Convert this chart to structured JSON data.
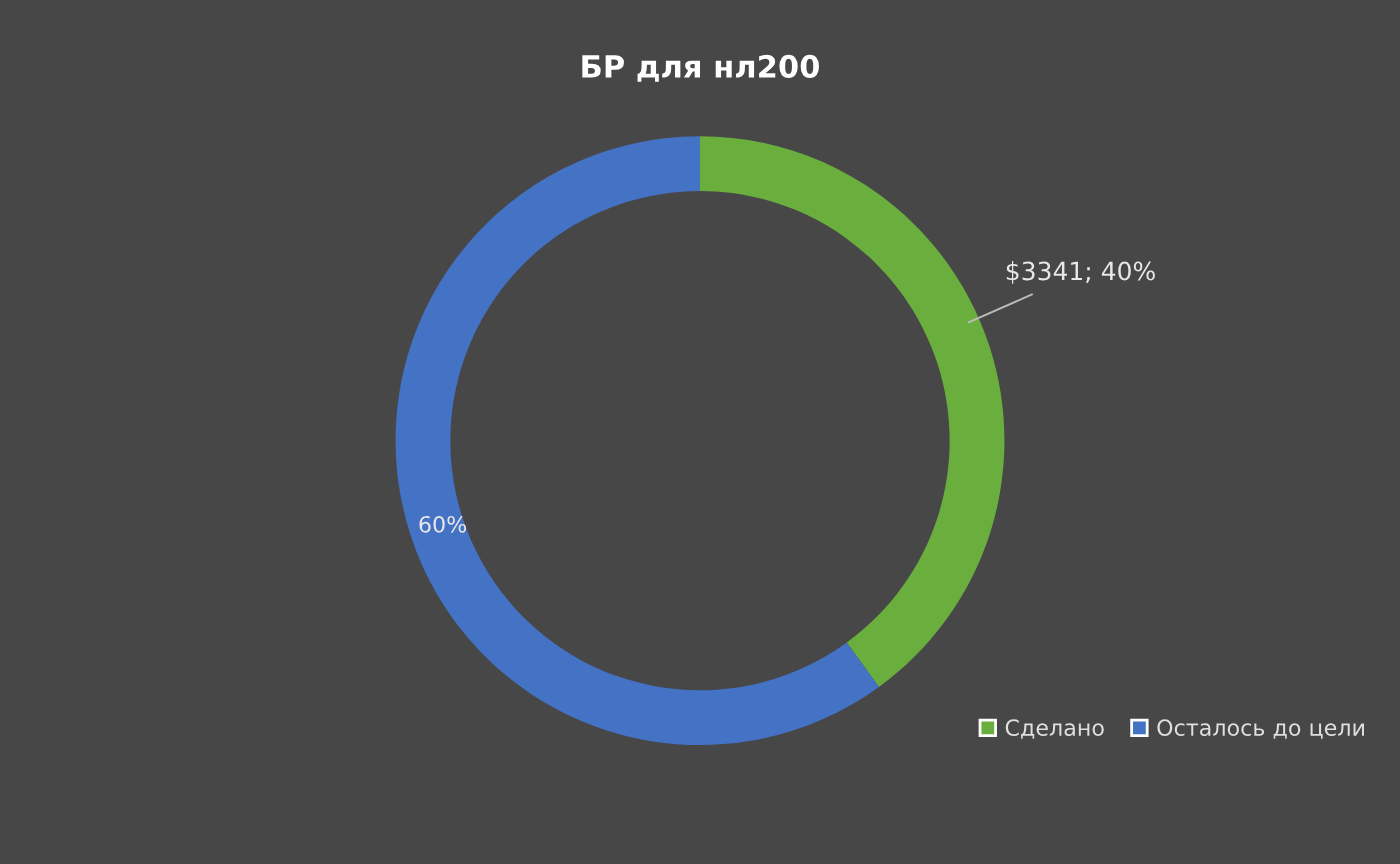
{
  "chart_data": {
    "type": "donut",
    "title": "БР для нл200",
    "categories": [
      "Сделано",
      "Осталось до цели"
    ],
    "values": [
      40,
      60
    ],
    "colors": [
      "#6aaf3d",
      "#4472c4"
    ],
    "value_labels": [
      "$3341; 40%",
      "60%"
    ],
    "legend": "bottom right"
  }
}
